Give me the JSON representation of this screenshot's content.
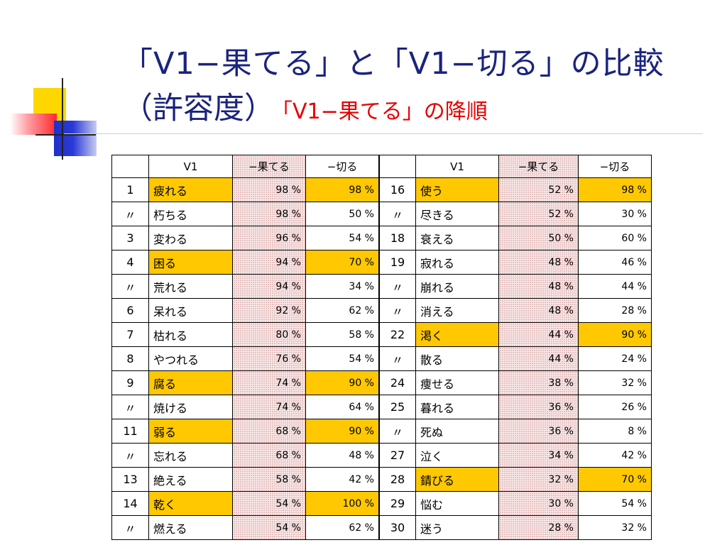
{
  "title": {
    "line1": "「V1−果てる」と「V1−切る」の比較",
    "line2_main": "（許容度）",
    "line2_sub": "「V1−果てる」の降順"
  },
  "colors": {
    "highlight": "#ffc800",
    "title": "#1a237e",
    "subtitle": "#e60000"
  },
  "table": {
    "headers": [
      "",
      "V1",
      "−果てる",
      "−切る",
      "",
      "V1",
      "−果てる",
      "−切る"
    ],
    "left": [
      {
        "rank": "1",
        "verb": "疲れる",
        "hateru": "98 %",
        "kiru": "98 %",
        "hl_verb": true,
        "hl_kiru": true
      },
      {
        "rank": "〃",
        "verb": "朽ちる",
        "hateru": "98 %",
        "kiru": "50 %"
      },
      {
        "rank": "3",
        "verb": "変わる",
        "hateru": "96 %",
        "kiru": "54 %"
      },
      {
        "rank": "4",
        "verb": "困る",
        "hateru": "94 %",
        "kiru": "70 %",
        "hl_verb": true,
        "hl_kiru": true
      },
      {
        "rank": "〃",
        "verb": "荒れる",
        "hateru": "94 %",
        "kiru": "34 %"
      },
      {
        "rank": "6",
        "verb": "呆れる",
        "hateru": "92 %",
        "kiru": "62 %"
      },
      {
        "rank": "7",
        "verb": "枯れる",
        "hateru": "80 %",
        "kiru": "58 %"
      },
      {
        "rank": "8",
        "verb": "やつれる",
        "hateru": "76 %",
        "kiru": "54 %"
      },
      {
        "rank": "9",
        "verb": "腐る",
        "hateru": "74 %",
        "kiru": "90 %",
        "hl_verb": true,
        "hl_kiru": true
      },
      {
        "rank": "〃",
        "verb": "焼ける",
        "hateru": "74 %",
        "kiru": "64 %"
      },
      {
        "rank": "11",
        "verb": "弱る",
        "hateru": "68 %",
        "kiru": "90 %",
        "hl_verb": true,
        "hl_kiru": true
      },
      {
        "rank": "〃",
        "verb": "忘れる",
        "hateru": "68 %",
        "kiru": "48 %"
      },
      {
        "rank": "13",
        "verb": "絶える",
        "hateru": "58 %",
        "kiru": "42 %"
      },
      {
        "rank": "14",
        "verb": "乾く",
        "hateru": "54 %",
        "kiru": "100 %",
        "hl_verb": true,
        "hl_kiru": true
      },
      {
        "rank": "〃",
        "verb": "燃える",
        "hateru": "54 %",
        "kiru": "62 %"
      }
    ],
    "right": [
      {
        "rank": "16",
        "verb": "使う",
        "hateru": "52 %",
        "kiru": "98 %",
        "hl_verb": true,
        "hl_kiru": true
      },
      {
        "rank": "〃",
        "verb": "尽きる",
        "hateru": "52 %",
        "kiru": "30 %"
      },
      {
        "rank": "18",
        "verb": "衰える",
        "hateru": "50 %",
        "kiru": "60 %"
      },
      {
        "rank": "19",
        "verb": "寂れる",
        "hateru": "48 %",
        "kiru": "46 %"
      },
      {
        "rank": "〃",
        "verb": "崩れる",
        "hateru": "48 %",
        "kiru": "44 %"
      },
      {
        "rank": "〃",
        "verb": "消える",
        "hateru": "48 %",
        "kiru": "28 %"
      },
      {
        "rank": "22",
        "verb": "渇く",
        "hateru": "44 %",
        "kiru": "90 %",
        "hl_verb": true,
        "hl_kiru": true
      },
      {
        "rank": "〃",
        "verb": "散る",
        "hateru": "44 %",
        "kiru": "24 %"
      },
      {
        "rank": "24",
        "verb": "痩せる",
        "hateru": "38 %",
        "kiru": "32 %"
      },
      {
        "rank": "25",
        "verb": "暮れる",
        "hateru": "36 %",
        "kiru": "26 %"
      },
      {
        "rank": "〃",
        "verb": "死ぬ",
        "hateru": "36 %",
        "kiru": "8 %"
      },
      {
        "rank": "27",
        "verb": "泣く",
        "hateru": "34 %",
        "kiru": "42 %"
      },
      {
        "rank": "28",
        "verb": "錆びる",
        "hateru": "32 %",
        "kiru": "70 %",
        "hl_verb": true,
        "hl_kiru": true
      },
      {
        "rank": "29",
        "verb": "悩む",
        "hateru": "30 %",
        "kiru": "54 %"
      },
      {
        "rank": "30",
        "verb": "迷う",
        "hateru": "28 %",
        "kiru": "32 %"
      }
    ]
  }
}
